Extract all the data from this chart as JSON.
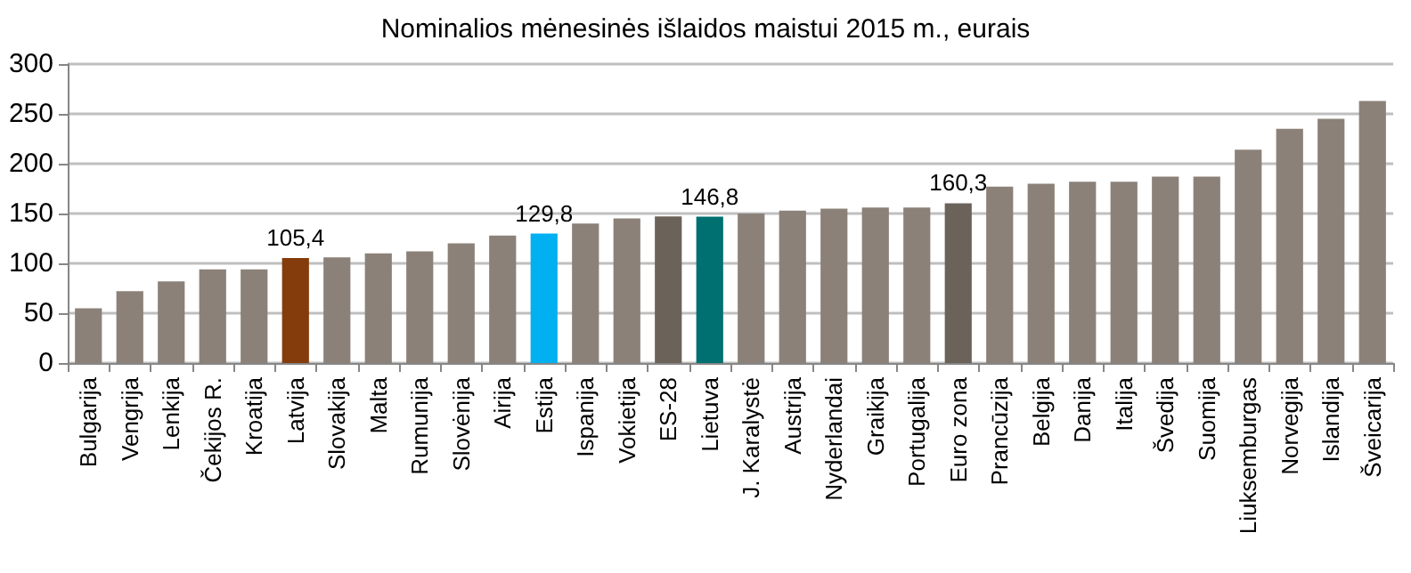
{
  "chart_data": {
    "type": "bar",
    "title": "Nominalios mėnesinės išlaidos maistui 2015 m., eurais",
    "categories": [
      "Bulgarija",
      "Vengrija",
      "Lenkija",
      "Čekijos R.",
      "Kroatija",
      "Latvija",
      "Slovakija",
      "Malta",
      "Rumunija",
      "Slovėnija",
      "Airija",
      "Estija",
      "Ispanija",
      "Vokietija",
      "ES-28",
      "Lietuva",
      "J. Karalystė",
      "Austrija",
      "Nyderlandai",
      "Graikija",
      "Portugalija",
      "Euro zona",
      "Prancūzija",
      "Belgija",
      "Danija",
      "Italija",
      "Švedija",
      "Suomija",
      "Liuksemburgas",
      "Norvegija",
      "Islandija",
      "Šveicarija"
    ],
    "values": [
      55,
      72,
      82,
      94,
      94,
      105.4,
      106,
      110,
      112,
      120,
      128,
      129.8,
      140,
      145,
      147,
      146.8,
      150,
      153,
      155,
      156,
      156,
      160.3,
      177,
      180,
      182,
      182,
      187,
      187,
      214,
      235,
      245,
      263
    ],
    "value_labels": [
      null,
      null,
      null,
      null,
      null,
      "105,4",
      null,
      null,
      null,
      null,
      null,
      "129,8",
      null,
      null,
      null,
      "146,8",
      null,
      null,
      null,
      null,
      null,
      "160,3",
      null,
      null,
      null,
      null,
      null,
      null,
      null,
      null,
      null,
      null
    ],
    "colors": [
      "#8b8178",
      "#8b8178",
      "#8b8178",
      "#8b8178",
      "#8b8178",
      "#843c0c",
      "#8b8178",
      "#8b8178",
      "#8b8178",
      "#8b8178",
      "#8b8178",
      "#00b0f0",
      "#8b8178",
      "#8b8178",
      "#6b625a",
      "#007070",
      "#8b8178",
      "#8b8178",
      "#8b8178",
      "#8b8178",
      "#8b8178",
      "#6b625a",
      "#8b8178",
      "#8b8178",
      "#8b8178",
      "#8b8178",
      "#8b8178",
      "#8b8178",
      "#8b8178",
      "#8b8178",
      "#8b8178",
      "#8b8178"
    ],
    "ylim": [
      0,
      300
    ],
    "yticks": [
      0,
      50,
      100,
      150,
      200,
      250,
      300
    ],
    "grid": "y"
  }
}
